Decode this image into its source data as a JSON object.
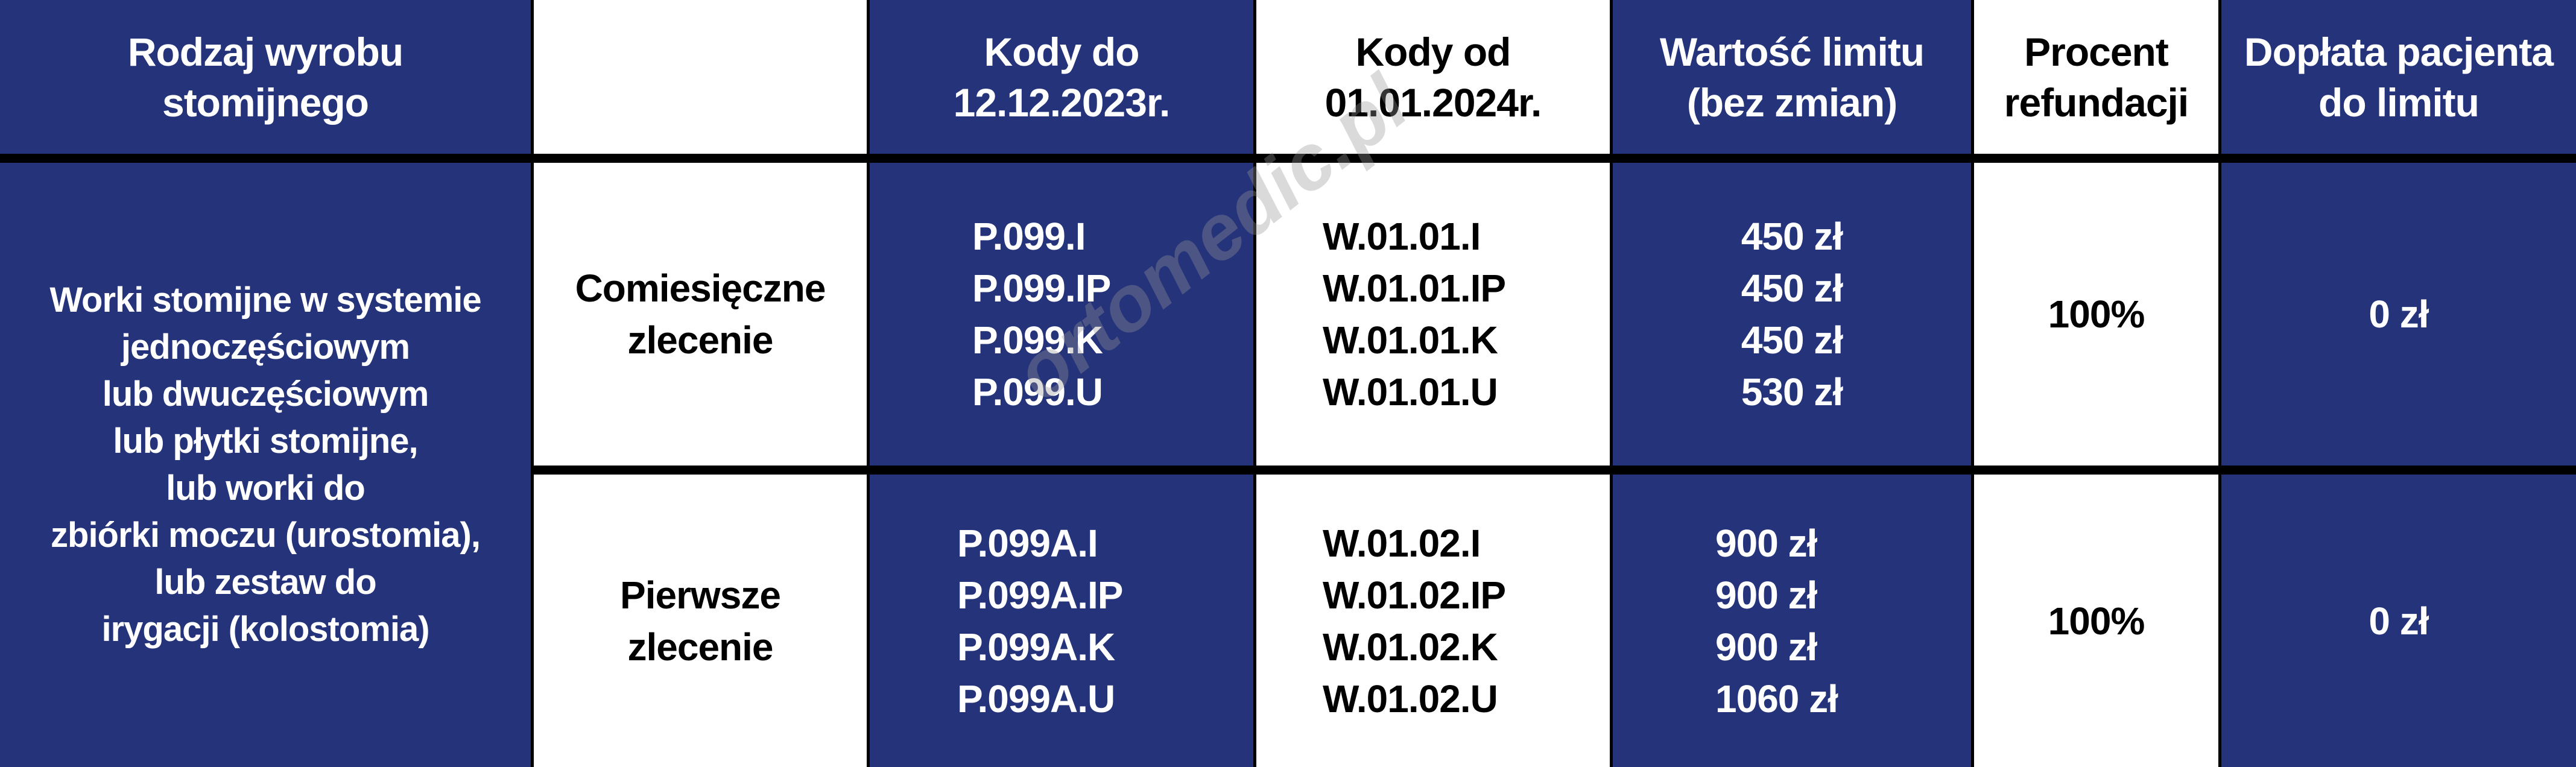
{
  "colors": {
    "blue": "#25337a",
    "white": "#ffffff",
    "border": "#000000"
  },
  "headers": [
    "Rodzaj wyrobu stomijnego",
    "",
    "Kody do 12.12.2023r.",
    "Kody od 01.01.2024r.",
    "Wartość limitu (bez zmian)",
    "Procent refundacji",
    "Dopłata pacjenta do limitu"
  ],
  "product_type": [
    "Worki stomijne w systemie",
    "jednoczęściowym",
    "lub dwuczęściowym",
    "lub płytki stomijne,",
    "lub worki do",
    "zbiórki moczu (urostomia),",
    "lub zestaw do",
    "irygacji (kolostomia)"
  ],
  "rows": [
    {
      "order": "Comiesięczne zlecenie",
      "old_codes": [
        "P.099.I",
        "P.099.IP",
        "P.099.K",
        "P.099.U"
      ],
      "new_codes": [
        "W.01.01.I",
        "W.01.01.IP",
        "W.01.01.K",
        "W.01.01.U"
      ],
      "limits": [
        "450 zł",
        "450 zł",
        "450 zł",
        "530 zł"
      ],
      "refund": "100%",
      "copay": "0 zł"
    },
    {
      "order": "Pierwsze zlecenie",
      "old_codes": [
        "P.099A.I",
        "P.099A.IP",
        "P.099A.K",
        "P.099A.U"
      ],
      "new_codes": [
        "W.01.02.I",
        "W.01.02.IP",
        "W.01.02.K",
        "W.01.02.U"
      ],
      "limits": [
        "900 zł",
        "900 zł",
        "900 zł",
        "1060 zł"
      ],
      "refund": "100%",
      "copay": "0 zł"
    }
  ],
  "watermark": "ortomedic.pl"
}
